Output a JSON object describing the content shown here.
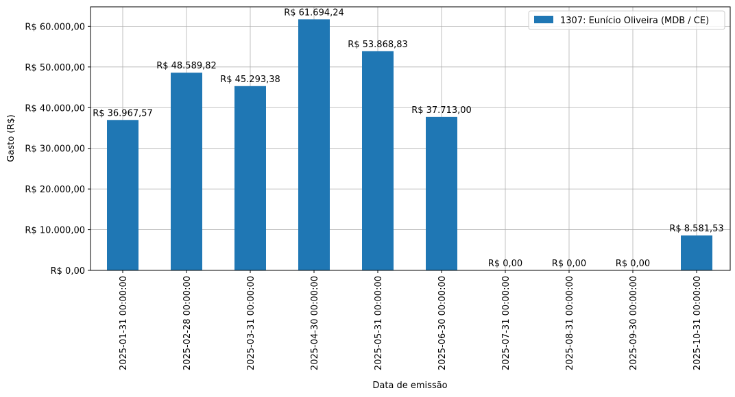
{
  "chart_data": {
    "type": "bar",
    "categories": [
      "2025-01-31 00:00:00",
      "2025-02-28 00:00:00",
      "2025-03-31 00:00:00",
      "2025-04-30 00:00:00",
      "2025-05-31 00:00:00",
      "2025-06-30 00:00:00",
      "2025-07-31 00:00:00",
      "2025-08-31 00:00:00",
      "2025-09-30 00:00:00",
      "2025-10-31 00:00:00"
    ],
    "series": [
      {
        "name": "1307: Eunício Oliveira (MDB / CE)",
        "color": "#1f77b4",
        "values": [
          36967.57,
          48589.82,
          45293.38,
          61694.24,
          53868.83,
          37713.0,
          0,
          0,
          0,
          8581.53
        ],
        "data_labels": [
          "R$ 36.967,57",
          "R$ 48.589,82",
          "R$ 45.293,38",
          "R$ 61.694,24",
          "R$ 53.868,83",
          "R$ 37.713,00",
          "R$ 0,00",
          "R$ 0,00",
          "R$ 0,00",
          "R$ 8.581,53"
        ]
      }
    ],
    "xlabel": "Data de emissão",
    "ylabel": "Gasto (R$)",
    "ylim": [
      0,
      64775
    ],
    "yticks": [
      0,
      10000,
      20000,
      30000,
      40000,
      50000,
      60000
    ],
    "ytick_labels": [
      "R$ 0,00",
      "R$ 10.000,00",
      "R$ 20.000,00",
      "R$ 30.000,00",
      "R$ 40.000,00",
      "R$ 50.000,00",
      "R$ 60.000,00"
    ],
    "grid": true,
    "legend_position": "top-right"
  }
}
